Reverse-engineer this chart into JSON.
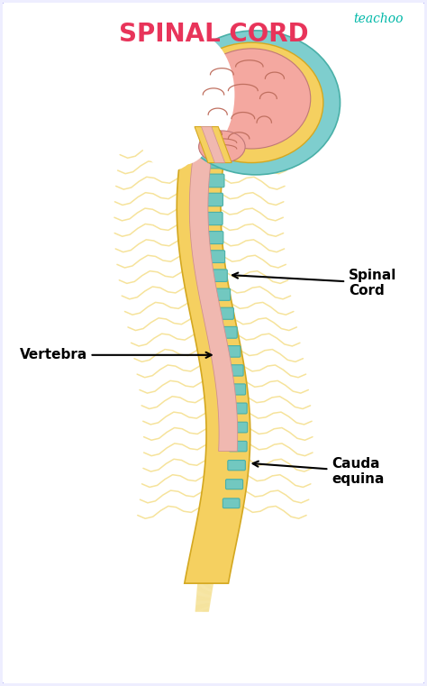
{
  "title": "SPINAL CORD",
  "title_color": "#e8345a",
  "title_fontsize": 20,
  "watermark": "teachoo",
  "watermark_color": "#00b8a8",
  "background_color": "#ffffff",
  "border_color": "#6a6aee",
  "fig_bg": "#eeeeff",
  "colors": {
    "teal_outer": "#7ecece",
    "yellow_sheath": "#f5d060",
    "pink_brain": "#f4a8a0",
    "pink_cord": "#f0b8b0",
    "teal_vertebra": "#72c8c0",
    "nerve_yellow": "#f5e090",
    "brain_line": "#c07060",
    "teal_edge": "#4ab0a8",
    "yellow_edge": "#d4a820"
  },
  "labels": {
    "spinal_cord": "Spinal\nCord",
    "vertebra": "Vertebra",
    "cauda_equina": "Cauda\nequina"
  },
  "label_fontsize": 11
}
